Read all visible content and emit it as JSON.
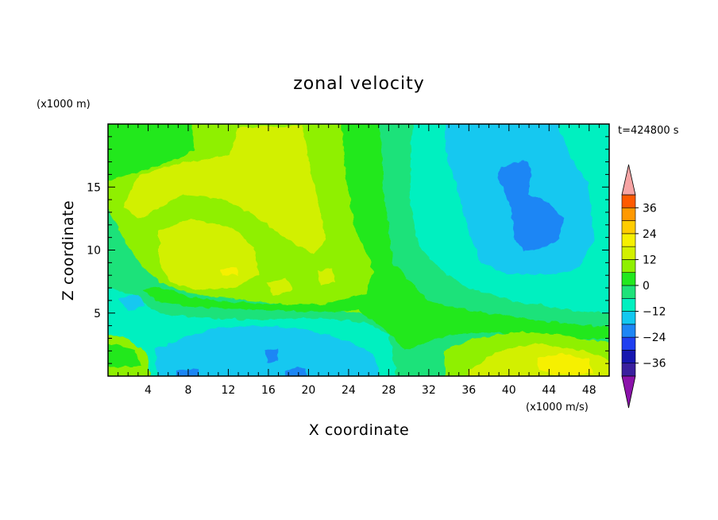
{
  "chart_data": {
    "type": "heatmap",
    "title": "zonal velocity",
    "xlabel": "X coordinate",
    "ylabel": "Z coordinate",
    "y_unit": "(x1000 m)",
    "colorbar_unit": "(x1000 m/s)",
    "time_label": "t=424800 s",
    "xlim": [
      0,
      50
    ],
    "ylim": [
      0,
      20
    ],
    "xticks": [
      "4",
      "8",
      "12",
      "16",
      "20",
      "24",
      "28",
      "32",
      "36",
      "40",
      "44",
      "48"
    ],
    "yticks": [
      "5",
      "10",
      "15"
    ],
    "colorbar": {
      "ticks": [
        "36",
        "24",
        "12",
        "0",
        "-12",
        "-24",
        "-36"
      ],
      "levels": [
        -42,
        -36,
        -30,
        -24,
        -18,
        -12,
        -6,
        0,
        6,
        12,
        18,
        24,
        30,
        36,
        42
      ],
      "colors": [
        "#5a0f9a",
        "#3a1f9e",
        "#1717b0",
        "#1f3ff0",
        "#1d86f5",
        "#12c8f0",
        "#00f0c0",
        "#1ee27a",
        "#22e81e",
        "#8ff000",
        "#d2f000",
        "#f6f000",
        "#ffcc00",
        "#ff9900",
        "#ff5a00",
        "#f01a14"
      ],
      "under_color": "#8b12aa",
      "over_color": "#f7a4a4"
    }
  }
}
